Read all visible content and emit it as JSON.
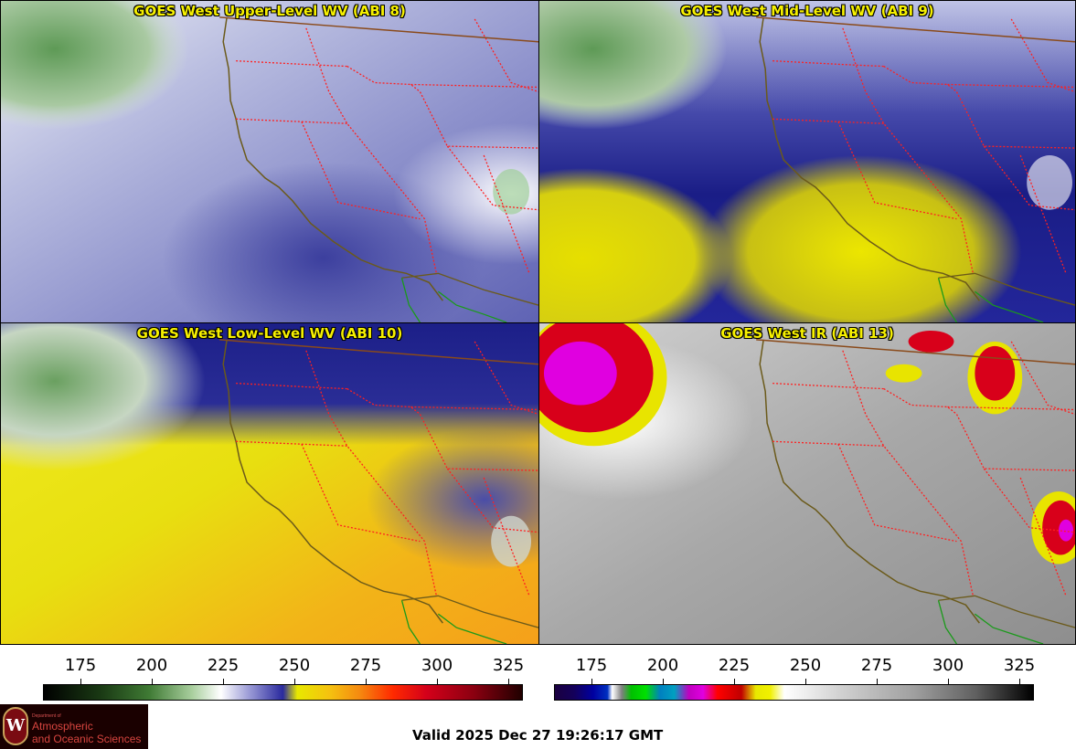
{
  "panels": [
    {
      "title": "GOES West Upper-Level WV (ABI 8)",
      "palette": "wv-upper"
    },
    {
      "title": "GOES West Mid-Level WV (ABI 9)",
      "palette": "wv-mid"
    },
    {
      "title": "GOES West Low-Level WV (ABI 10)",
      "palette": "wv-low"
    },
    {
      "title": "GOES West IR (ABI 13)",
      "palette": "ir"
    }
  ],
  "colorbar_wv": {
    "ticks": [
      "175",
      "200",
      "225",
      "250",
      "275",
      "300",
      "325"
    ],
    "range": [
      160,
      330
    ]
  },
  "colorbar_ir": {
    "ticks": [
      "175",
      "200",
      "225",
      "250",
      "275",
      "300",
      "325"
    ],
    "range": [
      160,
      330
    ]
  },
  "logo": {
    "dept_text": "Department of",
    "line1": "Atmospheric",
    "line2": "and Oceanic Sciences",
    "seal_letter": "W"
  },
  "footer": {
    "valid_text": "Valid 2025 Dec 27 19:26:17 GMT"
  },
  "colors": {
    "title": "#f6f000",
    "state_border": "#ff2020",
    "coast": "#6b5a1a",
    "mexico_border": "#1a9a1a"
  }
}
